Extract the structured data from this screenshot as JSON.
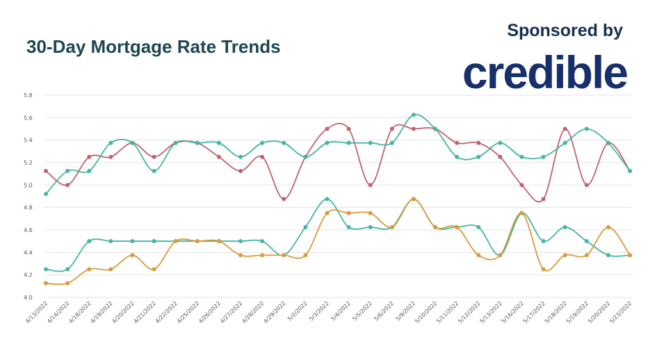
{
  "header": {
    "title": "30-Day Mortgage Rate Trends",
    "sponsor_text": "Sponsored by",
    "brand": "credible"
  },
  "colors": {
    "title": "#1d4650",
    "brand": "#17306b",
    "grid": "#e3e3e3",
    "series_red": "#c0626d",
    "series_teal": "#45b5a0",
    "series_orange": "#d89a3c"
  },
  "chart_data": {
    "type": "line",
    "x": [
      "4/13/2022",
      "4/14/2022",
      "4/18/2022",
      "4/19/2022",
      "4/20/2022",
      "4/21/2022",
      "4/22/2022",
      "4/25/2022",
      "4/26/2022",
      "4/27/2022",
      "4/28/2022",
      "4/29/2022",
      "5/2/2022",
      "5/3/2022",
      "5/4/2022",
      "5/5/2022",
      "5/6/2022",
      "5/9/2022",
      "5/10/2022",
      "5/11/2022",
      "5/12/2022",
      "5/13/2022",
      "5/16/2022",
      "5/17/2022",
      "5/18/2022",
      "5/19/2022",
      "5/20/2022",
      "5/23/2022"
    ],
    "ylim": [
      4.0,
      5.8
    ],
    "yticks": [
      "4.0",
      "4.2",
      "4.4",
      "4.6",
      "4.8",
      "5.0",
      "5.2",
      "5.4",
      "5.6",
      "5.8"
    ],
    "grid": true,
    "legend": "none",
    "series": [
      {
        "color": "#c0626d",
        "values": [
          5.125,
          5.0,
          5.25,
          5.25,
          5.375,
          5.25,
          5.375,
          5.375,
          5.25,
          5.125,
          5.25,
          4.875,
          5.25,
          5.5,
          5.5,
          5.0,
          5.5,
          5.5,
          5.5,
          5.375,
          5.375,
          5.25,
          5.0,
          4.875,
          5.5,
          5.0,
          5.375,
          5.125
        ]
      },
      {
        "color": "#45b5a0",
        "values": [
          4.92,
          5.125,
          5.125,
          5.375,
          5.375,
          5.125,
          5.375,
          5.375,
          5.375,
          5.25,
          5.375,
          5.375,
          5.25,
          5.375,
          5.375,
          5.375,
          5.375,
          5.625,
          5.5,
          5.25,
          5.25,
          5.375,
          5.25,
          5.25,
          5.375,
          5.5,
          5.375,
          5.125
        ]
      },
      {
        "color": "#45b5a0",
        "values": [
          4.25,
          4.25,
          4.5,
          4.5,
          4.5,
          4.5,
          4.5,
          4.5,
          4.5,
          4.5,
          4.5,
          4.375,
          4.625,
          4.875,
          4.625,
          4.625,
          4.625,
          4.875,
          4.625,
          4.625,
          4.625,
          4.375,
          4.75,
          4.5,
          4.625,
          4.5,
          4.375,
          4.375
        ]
      },
      {
        "color": "#d89a3c",
        "values": [
          4.125,
          4.125,
          4.25,
          4.25,
          4.375,
          4.25,
          4.5,
          4.5,
          4.5,
          4.375,
          4.375,
          4.375,
          4.375,
          4.75,
          4.75,
          4.75,
          4.625,
          4.875,
          4.625,
          4.625,
          4.375,
          4.375,
          4.75,
          4.25,
          4.375,
          4.375,
          4.625,
          4.375
        ]
      }
    ]
  }
}
